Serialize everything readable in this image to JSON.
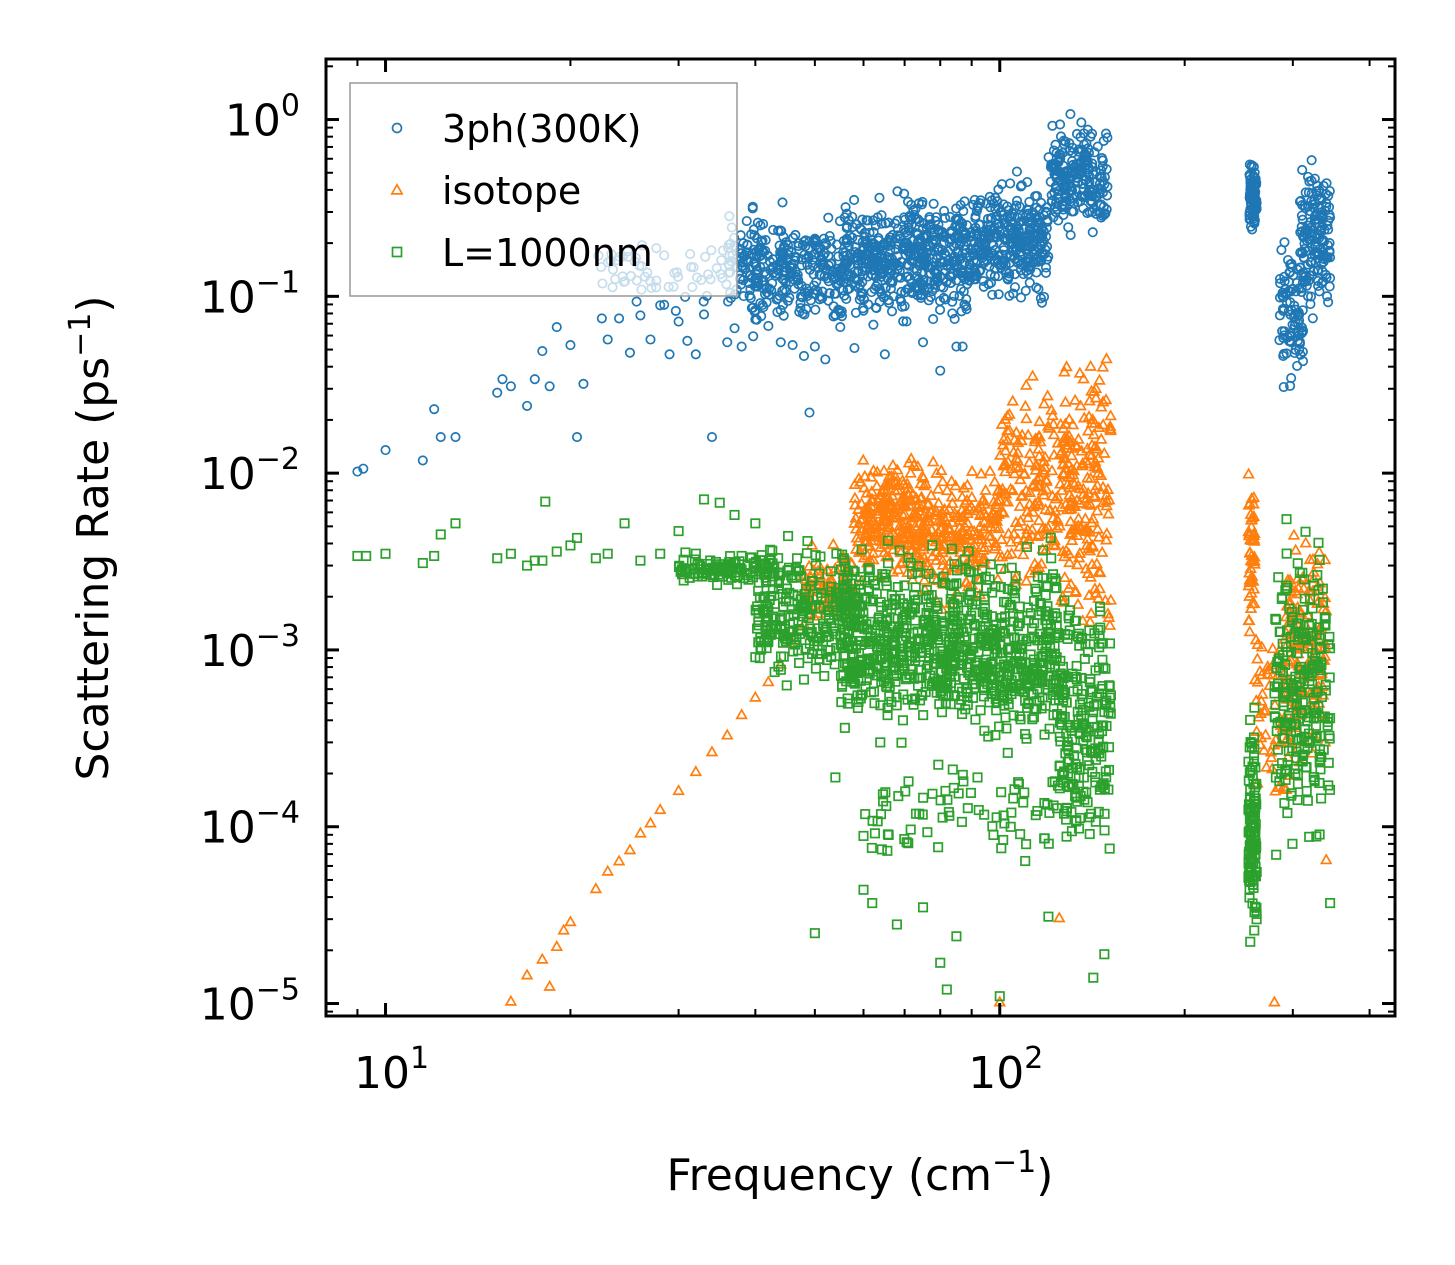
{
  "chart_data": {
    "type": "scatter",
    "title": "",
    "xlabel": {
      "text": "Frequency (cm",
      "sup": "−1",
      "close": ")"
    },
    "ylabel": {
      "text": "Scattering Rate (ps",
      "sup": "−1",
      "close": ")"
    },
    "xscale": "log",
    "yscale": "log",
    "xlim": [
      8,
      440
    ],
    "ylim": [
      8.5e-06,
      2.2
    ],
    "x_ticks": [
      {
        "value": 10,
        "base": "10",
        "exp": "1"
      },
      {
        "value": 100,
        "base": "10",
        "exp": "2"
      }
    ],
    "y_ticks": [
      {
        "value": 1,
        "base": "10",
        "exp": "0"
      },
      {
        "value": 0.1,
        "base": "10",
        "exp": "−1"
      },
      {
        "value": 0.01,
        "base": "10",
        "exp": "−2"
      },
      {
        "value": 0.001,
        "base": "10",
        "exp": "−3"
      },
      {
        "value": 0.0001,
        "base": "10",
        "exp": "−4"
      },
      {
        "value": 1e-05,
        "base": "10",
        "exp": "−5"
      }
    ],
    "legend_position": "top-left",
    "series": [
      {
        "name": "3ph(300K)",
        "marker": "circle",
        "color": "#1f77b4",
        "points": [
          [
            9.0,
            0.0102
          ],
          [
            9.2,
            0.0106
          ],
          [
            10.0,
            0.0135
          ],
          [
            11.5,
            0.0118
          ],
          [
            12.0,
            0.023
          ],
          [
            12.3,
            0.016
          ],
          [
            13.0,
            0.016
          ],
          [
            15.2,
            0.0285
          ],
          [
            15.5,
            0.034
          ],
          [
            16.0,
            0.031
          ],
          [
            17.0,
            0.024
          ],
          [
            17.5,
            0.034
          ],
          [
            18.0,
            0.049
          ],
          [
            18.5,
            0.031
          ],
          [
            19.0,
            0.067
          ],
          [
            20.0,
            0.053
          ],
          [
            20.5,
            0.016
          ],
          [
            21.0,
            0.032
          ],
          [
            22.5,
            0.075
          ],
          [
            23.0,
            0.057
          ],
          [
            24.0,
            0.075
          ],
          [
            25.0,
            0.048
          ],
          [
            26.0,
            0.078
          ],
          [
            27.0,
            0.057
          ],
          [
            28.0,
            0.089
          ],
          [
            29.0,
            0.047
          ],
          [
            30.0,
            0.072
          ],
          [
            31.0,
            0.056
          ],
          [
            32.0,
            0.047
          ],
          [
            33.0,
            0.079
          ],
          [
            34.0,
            0.016
          ],
          [
            36.0,
            0.055
          ],
          [
            37.0,
            0.066
          ],
          [
            38.0,
            0.052
          ],
          [
            40.0,
            0.074
          ],
          [
            42.0,
            0.068
          ],
          [
            44.0,
            0.055
          ],
          [
            46.0,
            0.053
          ],
          [
            48.0,
            0.046
          ],
          [
            49.0,
            0.022
          ],
          [
            50.0,
            0.052
          ],
          [
            52.0,
            0.044
          ],
          [
            55.0,
            0.067
          ],
          [
            58.0,
            0.051
          ],
          [
            60.0,
            0.083
          ],
          [
            65.0,
            0.047
          ],
          [
            70.0,
            0.088
          ],
          [
            75.0,
            0.055
          ],
          [
            80.0,
            0.038
          ],
          [
            85.0,
            0.052
          ],
          [
            87.0,
            0.052
          ]
        ],
        "clusters": [
          {
            "x": [
              22,
              36
            ],
            "y": [
              0.07,
              0.25
            ],
            "n": 60
          },
          {
            "x": [
              36,
              56
            ],
            "y": [
              0.055,
              0.38
            ],
            "n": 320
          },
          {
            "x": [
              56,
              90
            ],
            "y": [
              0.06,
              0.45
            ],
            "n": 520
          },
          {
            "x": [
              90,
              120
            ],
            "y": [
              0.08,
              0.55
            ],
            "n": 320
          },
          {
            "x": [
              120,
              150
            ],
            "y": [
              0.2,
              1.2
            ],
            "n": 220
          },
          {
            "x": [
              255,
              262
            ],
            "y": [
              0.2,
              0.62
            ],
            "n": 90
          },
          {
            "x": [
              285,
              312
            ],
            "y": [
              0.025,
              0.25
            ],
            "n": 90
          },
          {
            "x": [
              308,
              345
            ],
            "y": [
              0.06,
              0.72
            ],
            "n": 160
          }
        ]
      },
      {
        "name": "isotope",
        "marker": "triangle",
        "color": "#ff7f0e",
        "points": [
          [
            16.0,
            1.03e-05
          ],
          [
            17.0,
            1.45e-05
          ],
          [
            18.0,
            1.78e-05
          ],
          [
            18.5,
            1.25e-05
          ],
          [
            19.0,
            2.1e-05
          ],
          [
            19.5,
            2.6e-05
          ],
          [
            20.0,
            2.9e-05
          ],
          [
            22.0,
            4.46e-05
          ],
          [
            23.0,
            5.6e-05
          ],
          [
            24.0,
            6.4e-05
          ],
          [
            25.0,
            7.4e-05
          ],
          [
            26.0,
            9.2e-05
          ],
          [
            27.0,
            0.000105
          ],
          [
            28.0,
            0.000125
          ],
          [
            30.0,
            0.00016
          ],
          [
            32.0,
            0.000205
          ],
          [
            34.0,
            0.000265
          ],
          [
            36.0,
            0.00033
          ],
          [
            38.0,
            0.00043
          ],
          [
            40.0,
            0.00054
          ],
          [
            42.0,
            0.00066
          ],
          [
            44.0,
            0.00083
          ],
          [
            46.0,
            0.0011
          ],
          [
            48.0,
            0.0014
          ],
          [
            52.0,
            0.0022
          ],
          [
            56.0,
            0.0031
          ],
          [
            58.0,
            0.0052
          ],
          [
            100.0,
            1.02e-05
          ],
          [
            125.0,
            3.05e-05
          ],
          [
            280.0,
            1.02e-05
          ],
          [
            150.0,
            0.0016
          ],
          [
            340.0,
            6.5e-05
          ]
        ],
        "clusters": [
          {
            "x": [
              48,
              58
            ],
            "y": [
              0.0012,
              0.0045
            ],
            "n": 80
          },
          {
            "x": [
              58,
              75
            ],
            "y": [
              0.002,
              0.015
            ],
            "n": 260
          },
          {
            "x": [
              75,
              100
            ],
            "y": [
              0.0015,
              0.014
            ],
            "n": 220
          },
          {
            "x": [
              100,
              125
            ],
            "y": [
              0.0015,
              0.045
            ],
            "n": 160
          },
          {
            "x": [
              125,
              152
            ],
            "y": [
              0.0008,
              0.09
            ],
            "n": 200
          },
          {
            "x": [
              254,
              260
            ],
            "y": [
              0.0006,
              0.016
            ],
            "n": 50
          },
          {
            "x": [
              260,
              300
            ],
            "y": [
              5e-05,
              0.003
            ],
            "n": 60
          },
          {
            "x": [
              290,
              340
            ],
            "y": [
              0.00015,
              0.008
            ],
            "n": 140
          }
        ]
      },
      {
        "name": "L=1000nm",
        "marker": "square",
        "color": "#2ca02c",
        "points": [
          [
            9.0,
            0.0034
          ],
          [
            9.3,
            0.0034
          ],
          [
            10.0,
            0.0035
          ],
          [
            11.5,
            0.0031
          ],
          [
            12.0,
            0.0034
          ],
          [
            12.3,
            0.0045
          ],
          [
            13.0,
            0.0052
          ],
          [
            15.2,
            0.0033
          ],
          [
            16.0,
            0.0035
          ],
          [
            17.0,
            0.003
          ],
          [
            17.5,
            0.0032
          ],
          [
            18.0,
            0.0032
          ],
          [
            18.2,
            0.0069
          ],
          [
            19.0,
            0.0036
          ],
          [
            20.0,
            0.0039
          ],
          [
            20.5,
            0.0043
          ],
          [
            22.0,
            0.0033
          ],
          [
            23.0,
            0.0035
          ],
          [
            24.5,
            0.0052
          ],
          [
            26.0,
            0.0032
          ],
          [
            28.0,
            0.0035
          ],
          [
            30.0,
            0.0047
          ],
          [
            33.0,
            0.0071
          ],
          [
            35.0,
            0.0068
          ],
          [
            37.0,
            0.0058
          ],
          [
            40.0,
            0.0052
          ],
          [
            40.0,
            0.00091
          ],
          [
            43.0,
            0.00075
          ],
          [
            45.0,
            0.00063
          ],
          [
            48.0,
            0.00068
          ],
          [
            50.0,
            2.5e-05
          ],
          [
            54.0,
            0.00019
          ],
          [
            60.0,
            4.4e-05
          ],
          [
            62.0,
            3.7e-05
          ],
          [
            68.0,
            2.8e-05
          ],
          [
            75.0,
            3.5e-05
          ],
          [
            80.0,
            1.7e-05
          ],
          [
            82.0,
            1.2e-05
          ],
          [
            85.0,
            2.4e-05
          ],
          [
            92.0,
            0.00019
          ],
          [
            100.0,
            1.1e-05
          ],
          [
            110.0,
            6.4e-05
          ],
          [
            120.0,
            3.1e-05
          ],
          [
            142.0,
            1.4e-05
          ],
          [
            148.0,
            1.9e-05
          ],
          [
            345.0,
            3.7e-05
          ]
        ],
        "clusters": [
          {
            "x": [
              30,
              45
            ],
            "y": [
              0.0022,
              0.0038
            ],
            "n": 120
          },
          {
            "x": [
              40,
              60
            ],
            "y": [
              0.0005,
              0.005
            ],
            "n": 260
          },
          {
            "x": [
              55,
              90
            ],
            "y": [
              0.00025,
              0.005
            ],
            "n": 520
          },
          {
            "x": [
              90,
              125
            ],
            "y": [
              0.0002,
              0.0045
            ],
            "n": 360
          },
          {
            "x": [
              125,
              152
            ],
            "y": [
              5e-05,
              0.003
            ],
            "n": 200
          },
          {
            "x": [
              60,
              150
            ],
            "y": [
              6e-05,
              0.00025
            ],
            "n": 90
          },
          {
            "x": [
              254,
              262
            ],
            "y": [
              1.3e-05,
              0.0006
            ],
            "n": 130
          },
          {
            "x": [
              280,
              345
            ],
            "y": [
              5e-05,
              0.0065
            ],
            "n": 240
          }
        ]
      }
    ]
  }
}
